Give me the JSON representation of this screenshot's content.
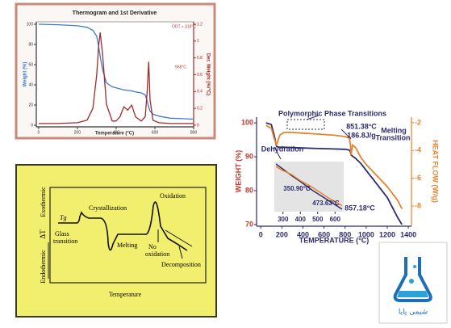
{
  "chart_data": [
    {
      "type": "line",
      "title": "Thermogram and 1st Derivative",
      "xlabel": "Temperature (°C)",
      "ylabel": "Weight (%)",
      "y2label": "Der. Weight (%/°C)",
      "x": [
        0,
        100,
        200,
        250,
        280,
        300,
        310,
        318,
        330,
        350,
        380,
        400,
        420,
        440,
        460,
        480,
        500,
        530,
        550,
        560,
        568,
        575,
        590,
        620,
        680,
        740,
        800
      ],
      "series": [
        {
          "color": "#3d7cc9",
          "values": [
            100,
            99.5,
            98.5,
            97,
            94,
            88,
            78,
            68,
            55,
            42,
            38,
            37,
            36,
            35,
            34.5,
            34,
            33,
            32,
            30,
            24,
            18,
            14,
            11,
            9,
            7,
            6.5,
            6
          ]
        },
        {
          "color": "#a12a2a",
          "axis": "y2",
          "values": [
            0.02,
            0.02,
            0.03,
            0.06,
            0.2,
            0.6,
            0.95,
            1.1,
            0.85,
            0.25,
            0.05,
            0.05,
            0.1,
            0.22,
            0.18,
            0.24,
            0.1,
            0.05,
            0.1,
            0.4,
            0.75,
            0.3,
            0.06,
            0.03,
            0.02,
            0.02,
            0.02
          ]
        }
      ],
      "xlim": [
        -12,
        800
      ],
      "xticks": [
        0,
        200,
        400,
        600,
        800
      ],
      "ylim": [
        -1.6,
        102.4
      ],
      "yticks": [
        0,
        20,
        40,
        60,
        80,
        100
      ],
      "y2lim": [
        -0.0192,
        1.2288
      ],
      "y2ticks": [
        0,
        0.2,
        0.4,
        0.6,
        0.8,
        1,
        1.2
      ],
      "grid": false,
      "annotations": [
        "ODT ≈ 318°C",
        "568°C"
      ]
    },
    {
      "type": "line",
      "xlabel": "TEMPERATURE (°C)",
      "ylabel": "WEIGHT (%)",
      "y2label": "HEAT FLOW (W/g)",
      "x": [
        50,
        100,
        130,
        150,
        180,
        220,
        300,
        400,
        500,
        600,
        700,
        800,
        840,
        851,
        857,
        870,
        900,
        950,
        1000,
        1100,
        1200,
        1300,
        1340
      ],
      "series": [
        {
          "color": "#2d2a6e",
          "values": [
            100,
            99.5,
            96,
            93,
            92.8,
            92.8,
            92.7,
            92.6,
            92.5,
            92.4,
            92.3,
            92.2,
            92,
            91.5,
            90.5,
            90.2,
            89.5,
            88,
            86,
            82,
            78,
            72,
            70
          ]
        },
        {
          "color": "#e8822a",
          "axis": "y2",
          "values": [
            -2.2,
            -2.4,
            -3.2,
            -3.6,
            -2.9,
            -2.7,
            -2.7,
            -2.75,
            -2.8,
            -2.85,
            -2.9,
            -3,
            -3.1,
            -3.6,
            -4.3,
            -3.6,
            -3.8,
            -4.5,
            -5,
            -5.8,
            -6.6,
            -7.6,
            -8.2
          ]
        }
      ],
      "xlim": [
        -40,
        1430
      ],
      "xticks": [
        0,
        200,
        400,
        600,
        800,
        1000,
        1200,
        1400
      ],
      "ylim": [
        69.5,
        101.7
      ],
      "yticks": [
        70,
        80,
        90,
        100
      ],
      "y2lim": [
        -9.45,
        -1.6
      ],
      "y2ticks": [
        -2,
        -4,
        -6,
        -8
      ],
      "grid": false,
      "annotations": [
        "Polymorphic Phase Transitions",
        "851.38°C",
        "186.8J/g",
        "Melting",
        "Transition",
        "Dehydration",
        "857.18°C"
      ]
    },
    {
      "type": "line",
      "x": [
        260,
        300,
        350,
        400,
        473,
        550,
        640
      ],
      "series": [
        {
          "color": "#2d2a6e",
          "values": [
            0.95,
            0.85,
            0.72,
            0.6,
            0.42,
            0.25,
            0.05
          ]
        },
        {
          "color": "#e8822a",
          "values": [
            0.9,
            0.82,
            0.74,
            0.62,
            0.48,
            0.3,
            0.12
          ]
        }
      ],
      "xlim": [
        250,
        650
      ],
      "xticks": [
        300,
        400,
        500,
        600
      ],
      "ylim": [
        0,
        1
      ],
      "annotations": [
        "350.90°C",
        "473.63°C"
      ]
    }
  ],
  "dta_diagram": {
    "exothermic": "Exothermic",
    "delta_t": "ΔT",
    "endothermic": "Endothermic",
    "tg": "Tg",
    "glass_transition": [
      "Glass",
      "transition"
    ],
    "crystallization": "Crystallization",
    "melting": "Melting",
    "oxidation": "Oxidation",
    "no_oxidation": [
      "No",
      "oxidation"
    ],
    "decomposition": "Decomposition",
    "temperature": "Temperature"
  },
  "logo": {
    "text": "شیمی پایا"
  }
}
